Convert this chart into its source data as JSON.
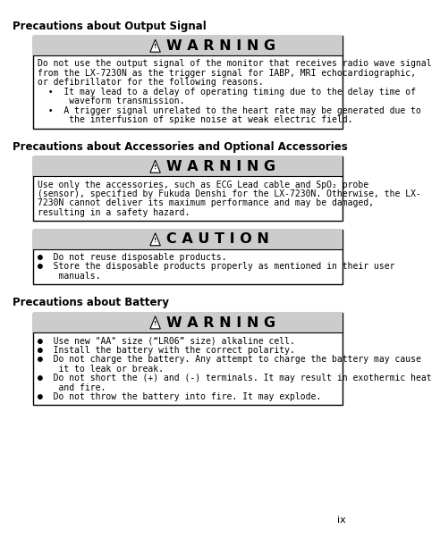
{
  "bg_color": "#ffffff",
  "page_number": "ix",
  "sections": [
    {
      "heading": "Precautions about Output Signal",
      "boxes": [
        {
          "type": "WARNING",
          "body_lines": [
            "Do not use the output signal of the monitor that receives radio wave signal",
            "from the LX-7230N as the trigger signal for IABP, MRI echocardiographic,",
            "or defibrillator for the following reasons.",
            "  •  It may lead to a delay of operating timing due to the delay time of",
            "      waveform transmission.",
            "  •  A trigger signal unrelated to the heart rate may be generated due to",
            "      the interfusion of spike noise at weak electric field."
          ]
        }
      ]
    },
    {
      "heading": "Precautions about Accessories and Optional Accessories",
      "boxes": [
        {
          "type": "WARNING",
          "body_lines": [
            "Use only the accessories, such as ECG Lead cable and SpO₂ probe",
            "(sensor), specified by Fukuda Denshi for the LX-7230N. Otherwise, the LX-",
            "7230N cannot deliver its maximum performance and may be damaged,",
            "resulting in a safety hazard."
          ]
        },
        {
          "type": "CAUTION",
          "body_lines": [
            "●  Do not reuse disposable products.",
            "●  Store the disposable products properly as mentioned in their user",
            "    manuals."
          ]
        }
      ]
    },
    {
      "heading": "Precautions about Battery",
      "boxes": [
        {
          "type": "WARNING",
          "body_lines": [
            "●  Use new \"AA\" size (“LR06” size) alkaline cell.",
            "●  Install the battery with the correct polarity.",
            "●  Do not charge the battery. Any attempt to charge the battery may cause",
            "    it to leak or break.",
            "●  Do not short the (+) and (-) terminals. It may result in exothermic heat",
            "    and fire.",
            "●  Do not throw the battery into fire. It may explode."
          ]
        }
      ]
    }
  ]
}
